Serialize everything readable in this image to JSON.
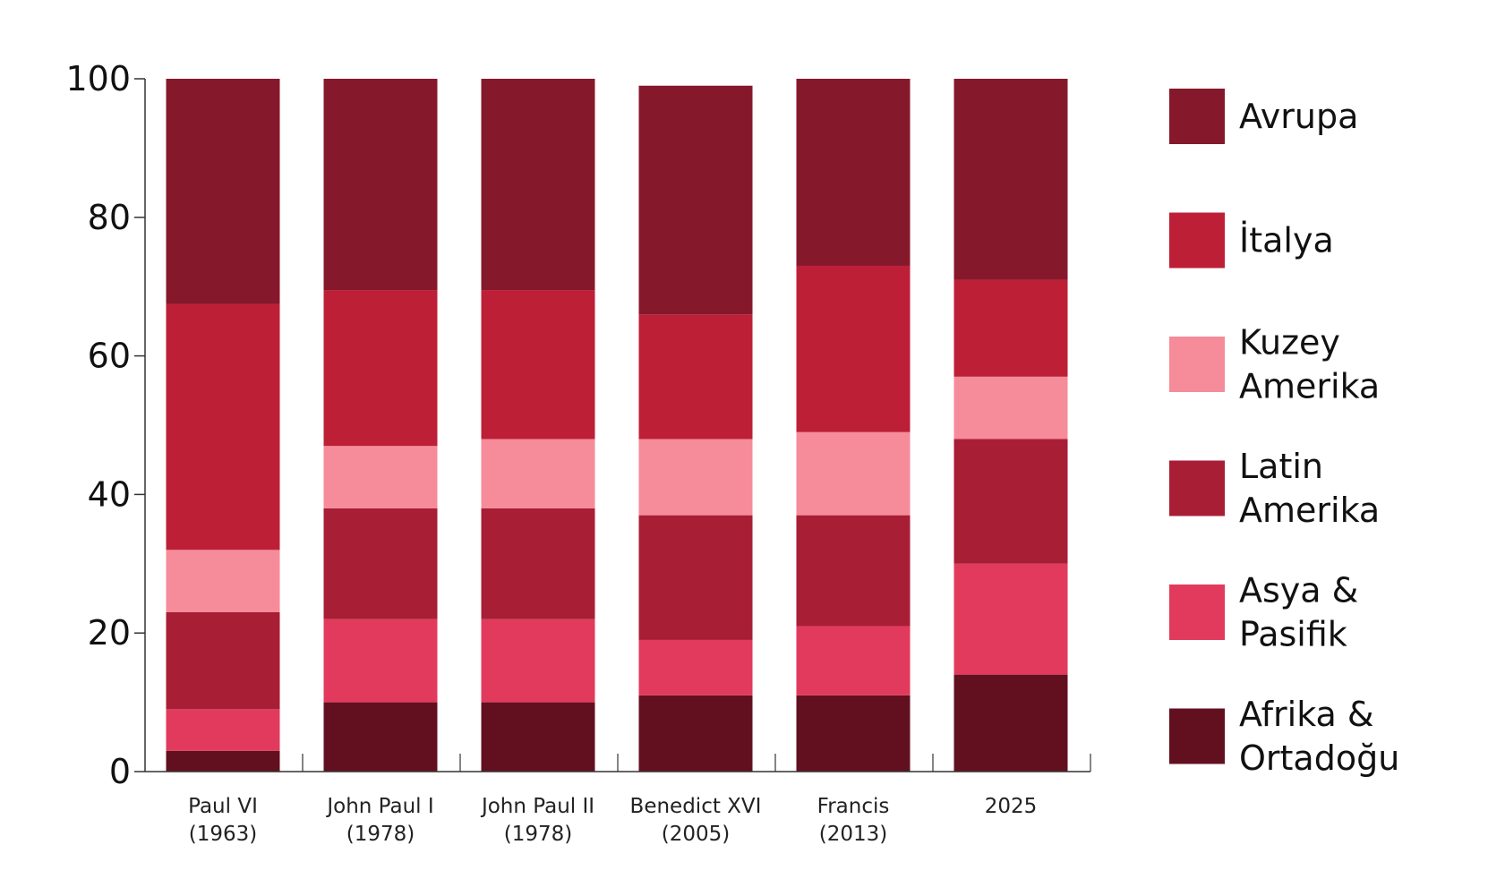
{
  "chart_data": {
    "type": "bar",
    "stacked": true,
    "ylim": [
      0,
      100
    ],
    "yticks": [
      0,
      20,
      40,
      60,
      80,
      100
    ],
    "grid": false,
    "legend_position": "right",
    "categories": [
      [
        "Paul VI",
        "(1963)"
      ],
      [
        "John Paul I",
        "(1978)"
      ],
      [
        "John Paul II",
        "(1978)"
      ],
      [
        "Benedict XVI",
        "(2005)"
      ],
      [
        "Francis",
        "(2013)"
      ],
      [
        "2025"
      ]
    ],
    "series": [
      {
        "name": [
          "Afrika &",
          "Ortadoğu"
        ],
        "color": "#621020",
        "values": [
          3,
          10,
          10,
          11,
          11,
          14
        ]
      },
      {
        "name": [
          "Asya &",
          "Pasifik"
        ],
        "color": "#e23a5c",
        "values": [
          6,
          12,
          12,
          8,
          10,
          16
        ]
      },
      {
        "name": [
          "Latin",
          "Amerika"
        ],
        "color": "#a81e35",
        "values": [
          14,
          16,
          16,
          18,
          16,
          18
        ]
      },
      {
        "name": [
          "Kuzey",
          "Amerika"
        ],
        "color": "#f68b9a",
        "values": [
          9,
          9,
          10,
          11,
          12,
          9
        ]
      },
      {
        "name": [
          "İtalya"
        ],
        "color": "#bd1f37",
        "values": [
          35.5,
          22.5,
          21.5,
          18,
          24,
          14
        ]
      },
      {
        "name": [
          "Avrupa"
        ],
        "color": "#86182b",
        "values": [
          32.5,
          30.5,
          30.5,
          33,
          27,
          29
        ]
      }
    ]
  }
}
